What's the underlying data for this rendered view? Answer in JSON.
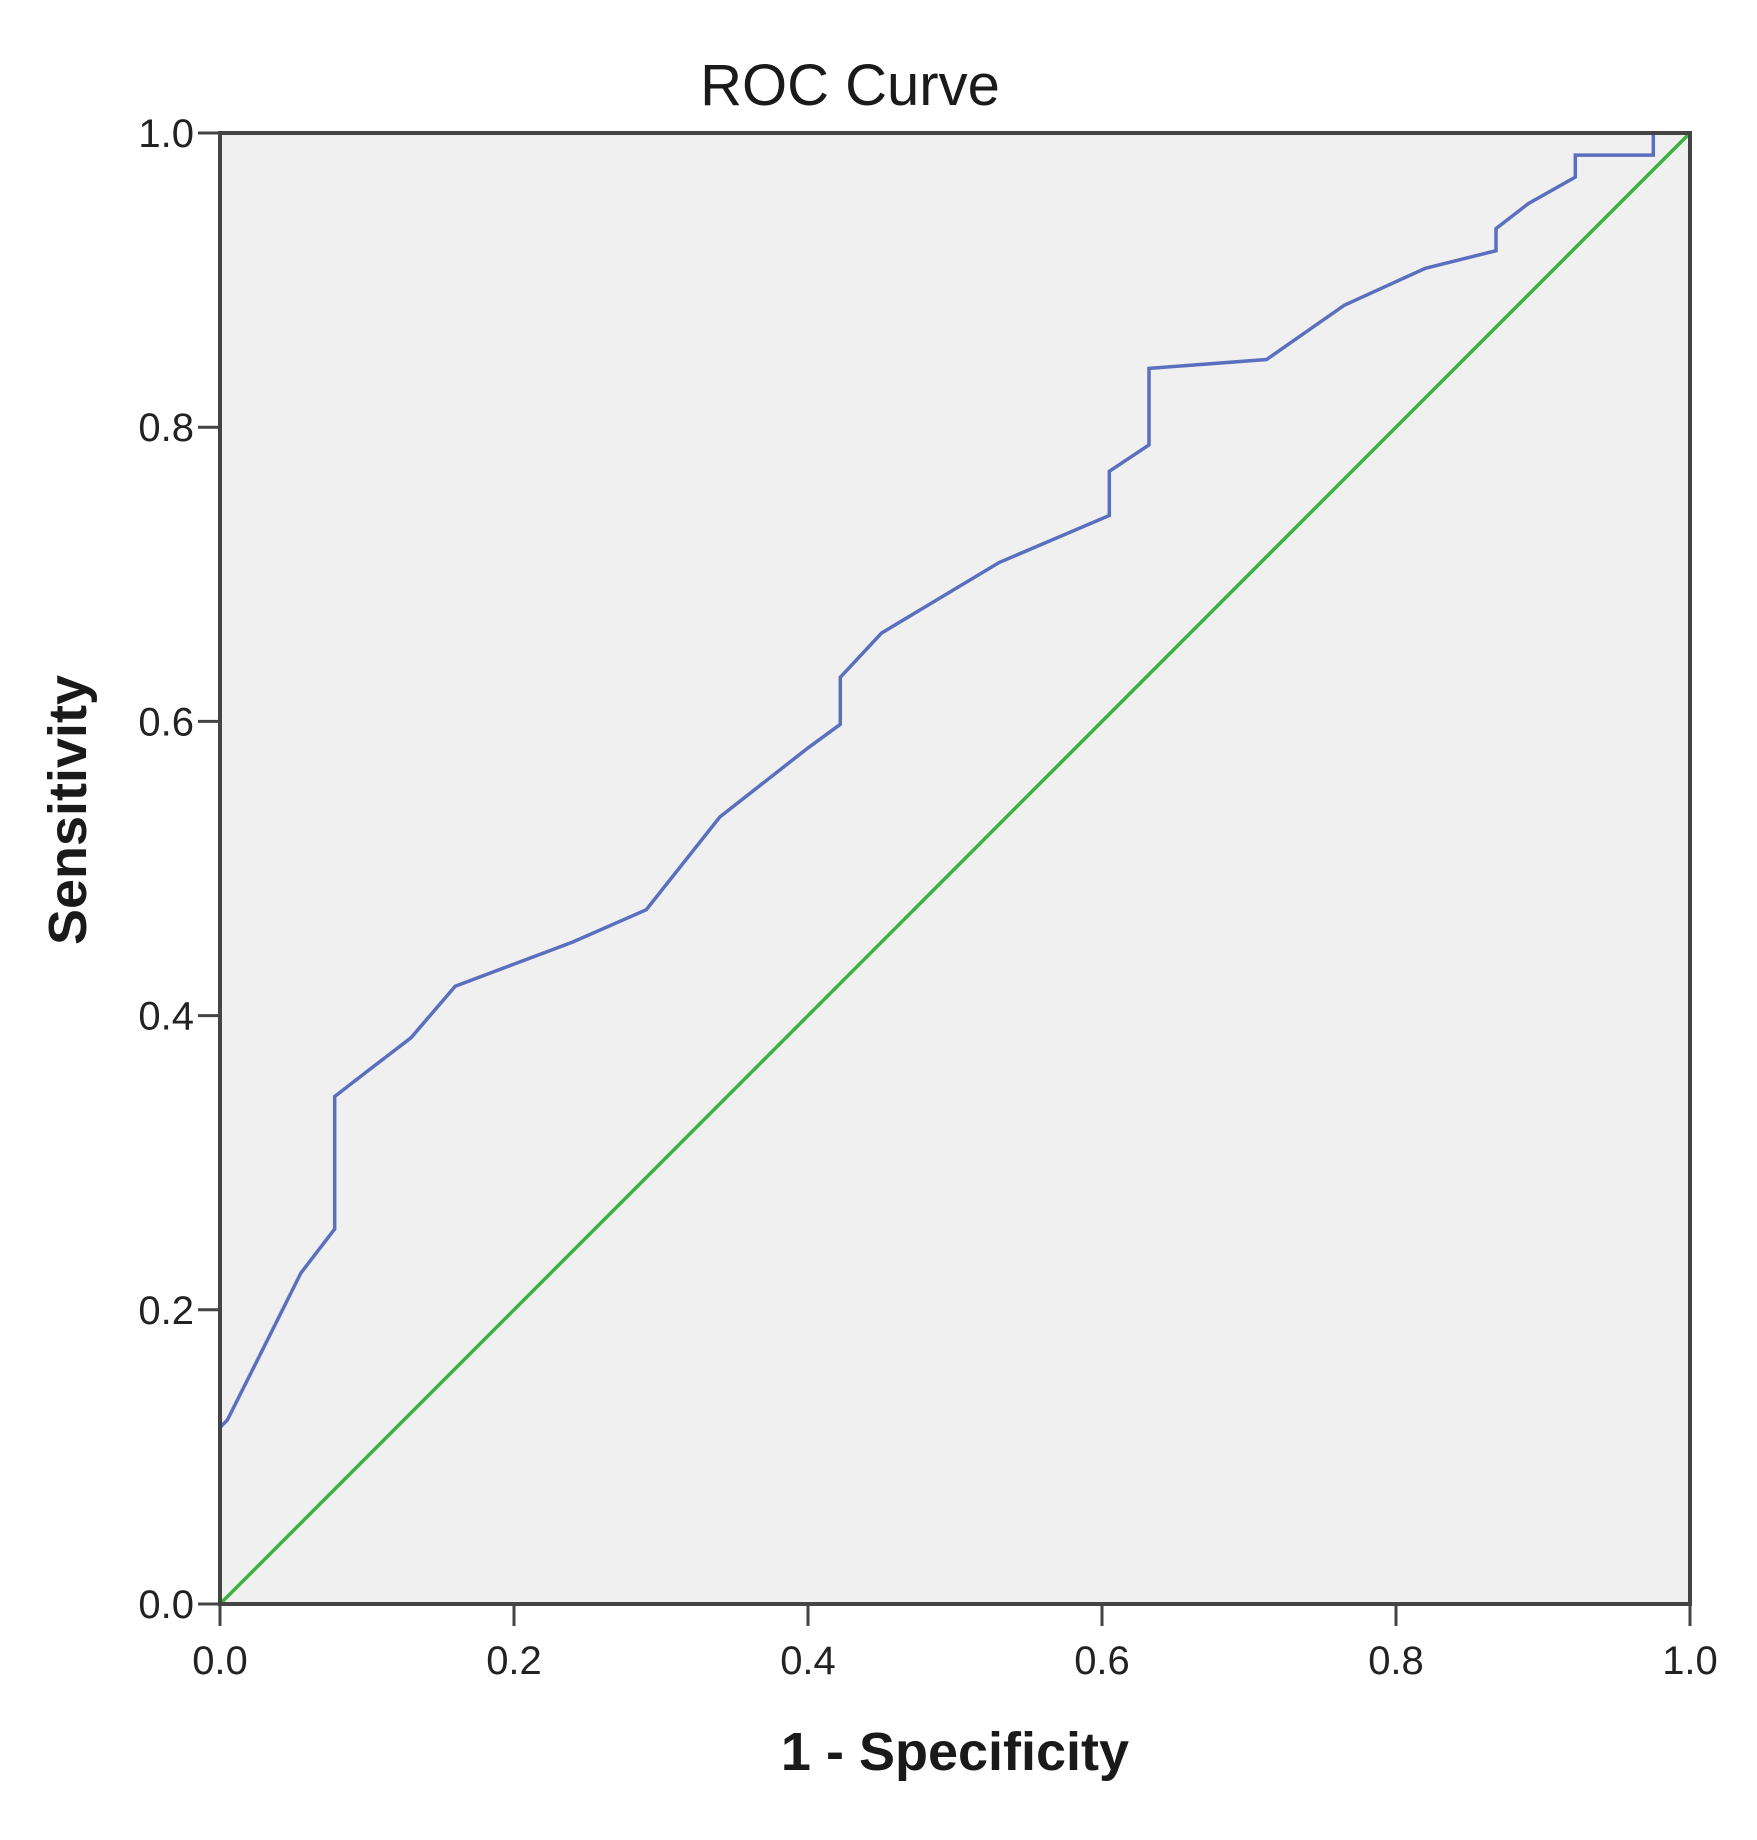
{
  "chart_data": {
    "type": "line",
    "title": "ROC Curve",
    "xlabel": "1 - Specificity",
    "ylabel": "Sensitivity",
    "xlim": [
      0.0,
      1.0
    ],
    "ylim": [
      0.0,
      1.0
    ],
    "x_ticks": [
      "0.0",
      "0.2",
      "0.4",
      "0.6",
      "0.8",
      "1.0"
    ],
    "y_ticks": [
      "0.0",
      "0.2",
      "0.4",
      "0.6",
      "0.8",
      "1.0"
    ],
    "grid": false,
    "legend": "none",
    "plot_background": "#f0f0f0",
    "series": [
      {
        "color": "#5b6fbf",
        "x": [
          0.0,
          0.0,
          0.005,
          0.025,
          0.055,
          0.078,
          0.078,
          0.1,
          0.13,
          0.16,
          0.24,
          0.29,
          0.34,
          0.4,
          0.422,
          0.422,
          0.45,
          0.53,
          0.605,
          0.605,
          0.632,
          0.632,
          0.712,
          0.765,
          0.82,
          0.868,
          0.868,
          0.89,
          0.922,
          0.922,
          0.975,
          0.975,
          1.0
        ],
        "y": [
          0.0,
          0.12,
          0.125,
          0.165,
          0.225,
          0.255,
          0.345,
          0.362,
          0.385,
          0.42,
          0.45,
          0.472,
          0.535,
          0.582,
          0.598,
          0.63,
          0.66,
          0.708,
          0.74,
          0.77,
          0.788,
          0.84,
          0.846,
          0.883,
          0.908,
          0.92,
          0.935,
          0.952,
          0.97,
          0.985,
          0.985,
          1.0,
          1.0
        ]
      },
      {
        "color": "#3cb043",
        "x": [
          0.0,
          1.0
        ],
        "y": [
          0.0,
          1.0
        ]
      }
    ]
  }
}
